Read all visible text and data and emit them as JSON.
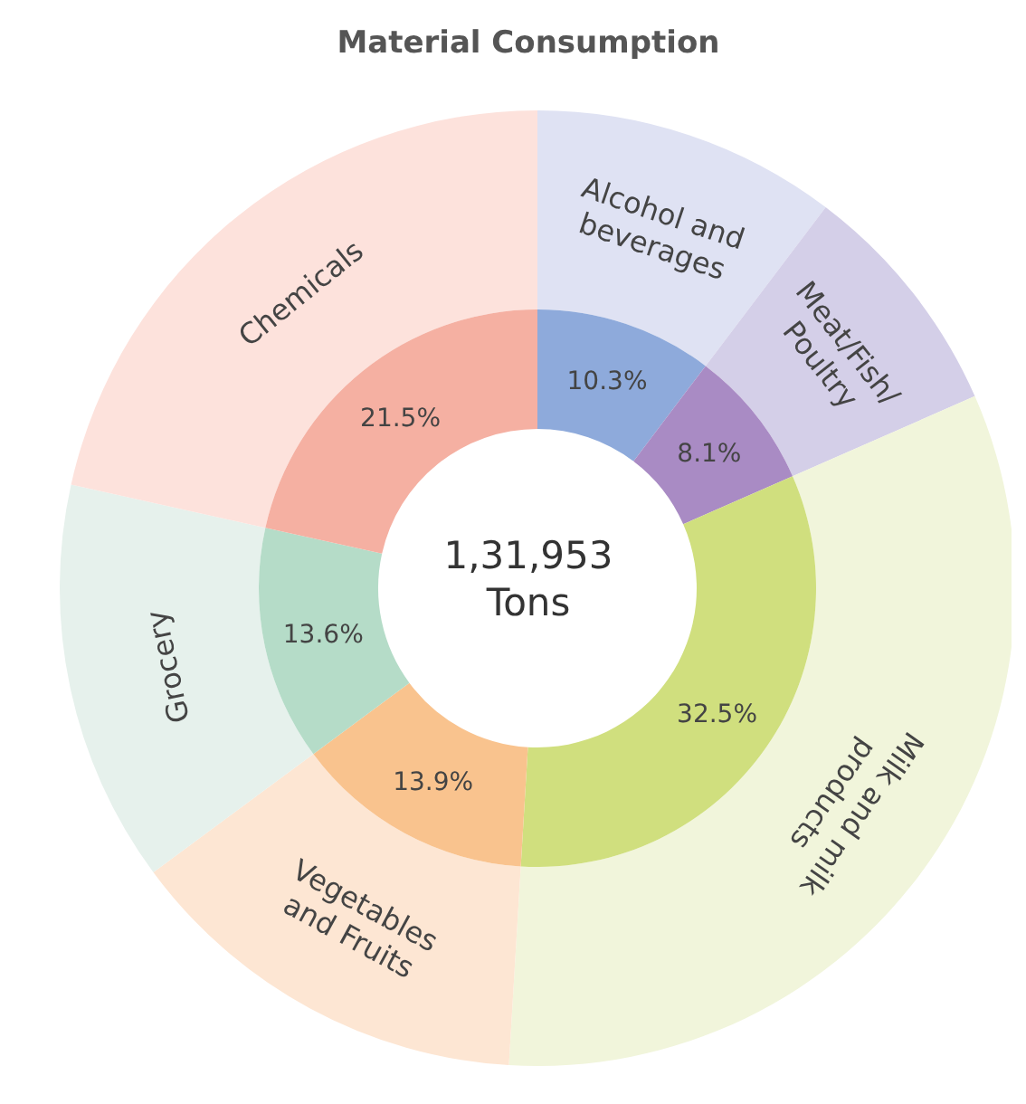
{
  "chart_data": {
    "type": "donut",
    "title": "Material Consumption",
    "categories": [
      "Alcohol and beverages",
      "Meat/Fish/Poultry",
      "Milk and milk products",
      "Vegetables and Fruits",
      "Grocery",
      "Chemicals"
    ],
    "series": [
      {
        "values": [
          10.3,
          8.1,
          32.5,
          13.9,
          13.6,
          21.5
        ],
        "colors": [
          "#dfe2f3",
          "#d4cfe8",
          "#f1f5db",
          "#fde6d3",
          "#e6f1ec",
          "#fde2dc"
        ]
      },
      {
        "values": [
          10.3,
          8.1,
          32.5,
          13.9,
          13.6,
          21.5
        ],
        "colors": [
          "#8eaadb",
          "#a98bc4",
          "#d0df7e",
          "#f9c38e",
          "#b5dcc8",
          "#f5b0a2"
        ],
        "value_labels": [
          "10.3%",
          "8.1%",
          "32.5%",
          "13.9%",
          "13.6%",
          "21.5%"
        ]
      }
    ],
    "annotations": [
      "1,31,953 Tons"
    ]
  }
}
